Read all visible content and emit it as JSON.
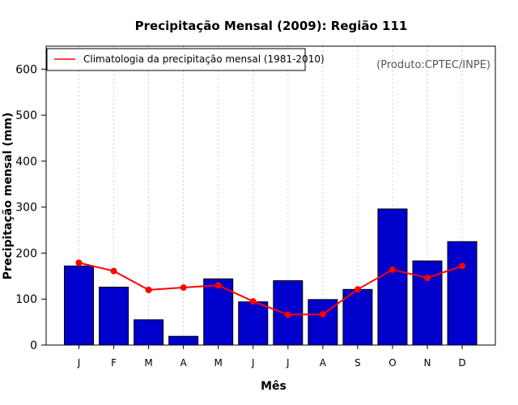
{
  "chart_data": {
    "type": "bar",
    "title": "Precipitação Mensal (2009): Região 111",
    "xlabel": "Mês",
    "ylabel": "Precipitação mensal (mm)",
    "source_note": "(Produto:CPTEC/INPE)",
    "categories": [
      "J",
      "F",
      "M",
      "A",
      "M",
      "J",
      "J",
      "A",
      "S",
      "O",
      "N",
      "D"
    ],
    "ylim": [
      0,
      650
    ],
    "yticks": [
      0,
      100,
      200,
      300,
      400,
      500,
      600
    ],
    "grid": "vertical dotted",
    "legend_position": "top-left",
    "series": [
      {
        "name": "Precipitação mensal 2009",
        "kind": "bar",
        "color": "#0000cc",
        "values": [
          172,
          126,
          55,
          19,
          144,
          94,
          140,
          99,
          121,
          296,
          183,
          225
        ]
      },
      {
        "name": "Climatologia da precipitação mensal (1981-2010)",
        "kind": "line",
        "color": "#ff0000",
        "values": [
          179,
          161,
          120,
          125,
          130,
          95,
          66,
          67,
          121,
          164,
          146,
          172
        ]
      }
    ]
  }
}
